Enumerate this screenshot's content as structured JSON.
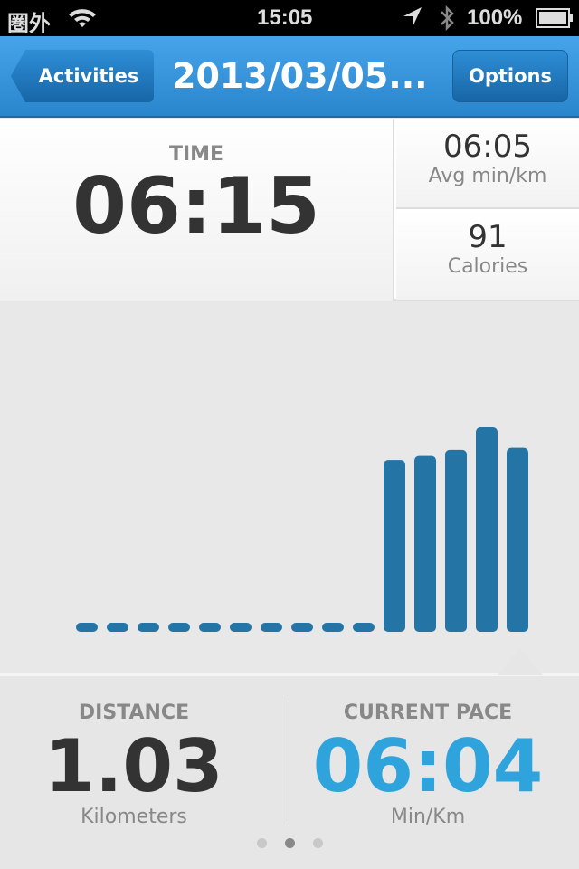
{
  "status_bar": {
    "carrier": "圏外",
    "time": "15:05",
    "battery": "100%",
    "icons": [
      "wifi-icon",
      "location-icon",
      "bluetooth-icon",
      "battery-icon"
    ]
  },
  "nav": {
    "back_label": "Activities",
    "title": "2013/03/05...",
    "options_label": "Options"
  },
  "stats": {
    "time_label": "TIME",
    "time_value": "06:15",
    "avg_value": "06:05",
    "avg_unit": "Avg min/km",
    "calories_value": "91",
    "calories_unit": "Calories"
  },
  "chart_data": {
    "type": "bar",
    "values": [
      0,
      0,
      0,
      0,
      0,
      0,
      0,
      0,
      0,
      0,
      84,
      86,
      89,
      100,
      90
    ],
    "color": "#2474a6",
    "selected_index": 14
  },
  "bottom": {
    "distance_label": "DISTANCE",
    "distance_value": "1.03",
    "distance_unit": "Kilometers",
    "pace_label": "CURRENT PACE",
    "pace_value": "06:04",
    "pace_unit": "Min/Km",
    "pace_color": "#2fa3dc",
    "page_count": 3,
    "current_page": 1
  }
}
